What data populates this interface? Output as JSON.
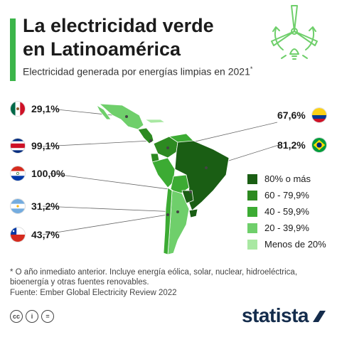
{
  "header": {
    "title_line1": "La electricidad verde",
    "title_line2": "en Latinoamérica",
    "subtitle": "Electricidad generada por energías limpias en 2021",
    "subtitle_mark": "*"
  },
  "chart_data": {
    "type": "choropleth",
    "title": "La electricidad verde en Latinoamérica",
    "subtitle": "Electricidad generada por energías limpias en 2021*",
    "unit": "%",
    "countries": [
      {
        "name": "México",
        "value": 29.1,
        "label": "29,1%",
        "flag": "mexico-flag"
      },
      {
        "name": "Costa Rica",
        "value": 99.1,
        "label": "99,1%",
        "flag": "costa-rica-flag"
      },
      {
        "name": "Paraguay",
        "value": 100.0,
        "label": "100,0%",
        "flag": "paraguay-flag"
      },
      {
        "name": "Argentina",
        "value": 31.2,
        "label": "31,2%",
        "flag": "argentina-flag"
      },
      {
        "name": "Chile",
        "value": 43.7,
        "label": "43,7%",
        "flag": "chile-flag"
      },
      {
        "name": "Colombia",
        "value": 67.6,
        "label": "67,6%",
        "flag": "colombia-flag"
      },
      {
        "name": "Brasil",
        "value": 81.2,
        "label": "81,2%",
        "flag": "brazil-flag"
      }
    ],
    "legend": [
      {
        "label": "80% o más",
        "color": "#1a5e14"
      },
      {
        "label": "60 - 79,9%",
        "color": "#2d8a21"
      },
      {
        "label": "40 - 59,9%",
        "color": "#3cab33"
      },
      {
        "label": "20 - 39,9%",
        "color": "#6fcf6b"
      },
      {
        "label": "Menos de 20%",
        "color": "#a9e8a3"
      }
    ],
    "legend_position": "bottom-right"
  },
  "footnote": "* O año inmediato anterior. Incluye energía eólica, solar, nuclear, hidroeléctrica, bioenergía y otras fuentes renovables.",
  "source": "Fuente: Ember Global Electricity Review 2022",
  "footer": {
    "license_icons": [
      "cc-icon",
      "by-icon",
      "nd-icon"
    ],
    "license_text": [
      "cc",
      "i",
      "="
    ],
    "brand": "statista"
  },
  "colors": {
    "accent": "#3cb54a",
    "brand": "#142c4c"
  }
}
